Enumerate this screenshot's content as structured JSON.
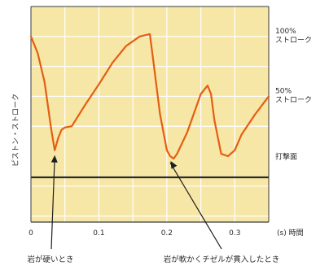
{
  "chart_data": {
    "type": "line",
    "title": "",
    "xlabel": "(s) 時間",
    "ylabel": "ピストン・ストローク",
    "xlim": [
      0,
      0.35
    ],
    "ylim": [
      -0.55,
      1.25
    ],
    "x_ticks": [
      {
        "value": 0,
        "label": "0"
      },
      {
        "value": 0.1,
        "label": "0.1"
      },
      {
        "value": 0.2,
        "label": "0.2"
      },
      {
        "value": 0.3,
        "label": "0.3"
      }
    ],
    "y_refs": [
      {
        "value": 1.0,
        "label": [
          "100%",
          "ストローク"
        ]
      },
      {
        "value": 0.5,
        "label": [
          "50%",
          "ストローク"
        ]
      },
      {
        "value": 0.0,
        "label": [
          "打撃面"
        ]
      }
    ],
    "grid": true,
    "background": "#f7e7a6",
    "series": [
      {
        "color": "#e45d14",
        "x": [
          0,
          0.01,
          0.02,
          0.03,
          0.035,
          0.04,
          0.045,
          0.05,
          0.06,
          0.08,
          0.1,
          0.12,
          0.14,
          0.16,
          0.175,
          0.18,
          0.19,
          0.2,
          0.205,
          0.21,
          0.215,
          0.23,
          0.25,
          0.26,
          0.265,
          0.27,
          0.28,
          0.29,
          0.3,
          0.31,
          0.33,
          0.35
        ],
        "y": [
          1.0,
          0.86,
          0.62,
          0.22,
          0.05,
          0.15,
          0.22,
          0.24,
          0.25,
          0.43,
          0.6,
          0.78,
          0.92,
          1.0,
          1.02,
          0.8,
          0.35,
          0.05,
          0.0,
          -0.02,
          0.02,
          0.2,
          0.52,
          0.59,
          0.52,
          0.3,
          0.02,
          0.0,
          0.05,
          0.18,
          0.35,
          0.5
        ]
      }
    ],
    "annotations": [
      {
        "text": "岩が硬いとき",
        "x": 0.035,
        "y": 0.05
      },
      {
        "text": "岩が軟かくチゼルが貫入したとき",
        "x": 0.205,
        "y": 0.0
      }
    ]
  }
}
